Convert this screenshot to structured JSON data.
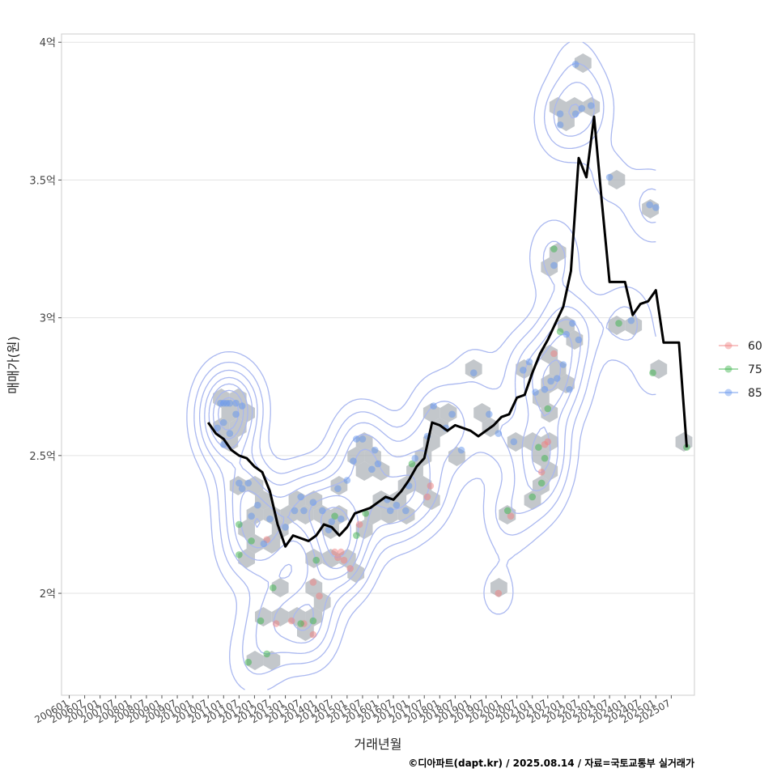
{
  "chart_data": {
    "type": "scatter",
    "xlabel": "거래년월",
    "ylabel": "매매가(원)",
    "caption": "©디아파트(dapt.kr) / 2025.08.14 / 자료=국토교통부 실거래가",
    "x_tick_labels": [
      "200601",
      "200607",
      "200701",
      "200707",
      "200801",
      "200807",
      "200901",
      "200907",
      "201001",
      "201007",
      "201101",
      "201107",
      "201201",
      "201207",
      "201301",
      "201307",
      "201401",
      "201407",
      "201501",
      "201507",
      "201601",
      "201607",
      "201701",
      "201707",
      "201801",
      "201807",
      "201901",
      "201907",
      "202001",
      "202007",
      "202101",
      "202107",
      "202201",
      "202207",
      "202301",
      "202307",
      "202401",
      "202407",
      "202501",
      "202507"
    ],
    "y_ticks": [
      {
        "value": 20000,
        "label": "2억"
      },
      {
        "value": 25000,
        "label": "2.5억"
      },
      {
        "value": 30000,
        "label": "3억"
      },
      {
        "value": 35000,
        "label": "3.5억"
      },
      {
        "value": 40000,
        "label": "4억"
      }
    ],
    "xlim": [
      2005.75,
      2026.25
    ],
    "ylim": [
      16300,
      40300
    ],
    "grid": true,
    "legend_position": "right",
    "series_colors": {
      "60": "#f08080",
      "75": "#3cb44b",
      "85": "#6495ed"
    },
    "trend_color": "#000000",
    "hex_color": "#a9afb5",
    "contour_color": "#aab8f0",
    "series": [
      {
        "name": "60",
        "points": [
          [
            2012.4,
            21950
          ],
          [
            2012.7,
            18900
          ],
          [
            2013.2,
            19000
          ],
          [
            2013.6,
            18900
          ],
          [
            2013.9,
            18500
          ],
          [
            2013.9,
            20400
          ],
          [
            2014.1,
            19900
          ],
          [
            2014.6,
            21500
          ],
          [
            2014.7,
            21300
          ],
          [
            2014.8,
            21500
          ],
          [
            2014.9,
            21200
          ],
          [
            2015.1,
            20900
          ],
          [
            2015.4,
            22500
          ],
          [
            2017.6,
            23500
          ],
          [
            2017.7,
            23900
          ],
          [
            2019.9,
            20000
          ],
          [
            2020.3,
            22800
          ],
          [
            2021.4,
            25400
          ],
          [
            2021.5,
            25500
          ],
          [
            2021.7,
            28700
          ],
          [
            2021.3,
            24400
          ]
        ]
      },
      {
        "name": "75",
        "points": [
          [
            2011.5,
            22500
          ],
          [
            2011.5,
            21400
          ],
          [
            2011.8,
            17500
          ],
          [
            2011.9,
            21900
          ],
          [
            2012.2,
            19000
          ],
          [
            2012.4,
            17800
          ],
          [
            2012.6,
            20200
          ],
          [
            2013.5,
            18900
          ],
          [
            2013.9,
            19000
          ],
          [
            2014.0,
            21200
          ],
          [
            2014.6,
            22800
          ],
          [
            2015.3,
            22100
          ],
          [
            2015.6,
            22900
          ],
          [
            2017.1,
            24700
          ],
          [
            2020.2,
            23000
          ],
          [
            2021.0,
            23500
          ],
          [
            2021.2,
            25300
          ],
          [
            2021.4,
            24900
          ],
          [
            2021.3,
            24000
          ],
          [
            2021.5,
            26700
          ],
          [
            2021.7,
            32500
          ],
          [
            2021.9,
            29500
          ],
          [
            2023.8,
            29800
          ],
          [
            2024.9,
            28000
          ],
          [
            2026.0,
            25300
          ]
        ]
      },
      {
        "name": "85",
        "points": [
          [
            2010.9,
            26900
          ],
          [
            2011.0,
            26900
          ],
          [
            2011.1,
            26900
          ],
          [
            2011.2,
            26900
          ],
          [
            2011.4,
            26900
          ],
          [
            2011.6,
            26800
          ],
          [
            2010.8,
            26000
          ],
          [
            2011.0,
            26200
          ],
          [
            2011.2,
            25800
          ],
          [
            2011.4,
            26500
          ],
          [
            2011.0,
            25400
          ],
          [
            2011.5,
            24000
          ],
          [
            2011.6,
            23800
          ],
          [
            2011.8,
            24000
          ],
          [
            2011.9,
            22800
          ],
          [
            2012.1,
            23200
          ],
          [
            2012.3,
            21800
          ],
          [
            2012.5,
            22700
          ],
          [
            2013.0,
            22400
          ],
          [
            2013.3,
            23000
          ],
          [
            2013.5,
            23500
          ],
          [
            2013.6,
            23000
          ],
          [
            2013.9,
            23300
          ],
          [
            2014.2,
            23000
          ],
          [
            2014.4,
            22300
          ],
          [
            2014.5,
            22600
          ],
          [
            2014.8,
            22700
          ],
          [
            2014.7,
            23800
          ],
          [
            2015.0,
            24100
          ],
          [
            2015.2,
            24800
          ],
          [
            2015.3,
            25600
          ],
          [
            2015.5,
            25600
          ],
          [
            2015.8,
            24500
          ],
          [
            2015.9,
            25200
          ],
          [
            2016.0,
            24700
          ],
          [
            2016.3,
            23400
          ],
          [
            2016.4,
            23000
          ],
          [
            2016.6,
            23200
          ],
          [
            2016.9,
            23000
          ],
          [
            2017.0,
            23900
          ],
          [
            2017.2,
            24900
          ],
          [
            2017.6,
            25700
          ],
          [
            2017.8,
            26800
          ],
          [
            2018.2,
            26000
          ],
          [
            2018.4,
            26500
          ],
          [
            2018.7,
            25200
          ],
          [
            2019.1,
            28000
          ],
          [
            2019.6,
            26500
          ],
          [
            2019.9,
            25800
          ],
          [
            2020.4,
            25500
          ],
          [
            2020.7,
            28100
          ],
          [
            2020.9,
            28400
          ],
          [
            2021.1,
            27300
          ],
          [
            2021.4,
            27400
          ],
          [
            2021.6,
            27700
          ],
          [
            2021.8,
            27800
          ],
          [
            2022.0,
            28300
          ],
          [
            2022.2,
            27400
          ],
          [
            2022.5,
            29200
          ],
          [
            2022.3,
            29800
          ],
          [
            2022.1,
            29400
          ],
          [
            2021.7,
            31900
          ],
          [
            2021.9,
            37400
          ],
          [
            2021.9,
            37000
          ],
          [
            2022.4,
            37400
          ],
          [
            2022.6,
            37600
          ],
          [
            2022.9,
            37700
          ],
          [
            2022.4,
            39200
          ],
          [
            2023.5,
            35100
          ],
          [
            2024.2,
            29900
          ],
          [
            2025.0,
            34000
          ],
          [
            2024.8,
            34100
          ]
        ]
      }
    ],
    "trend_line": [
      [
        2010.5,
        26200
      ],
      [
        2010.75,
        25800
      ],
      [
        2011.0,
        25600
      ],
      [
        2011.25,
        25200
      ],
      [
        2011.5,
        25000
      ],
      [
        2011.75,
        24900
      ],
      [
        2012.0,
        24600
      ],
      [
        2012.25,
        24400
      ],
      [
        2012.5,
        23700
      ],
      [
        2012.75,
        22500
      ],
      [
        2013.0,
        21700
      ],
      [
        2013.25,
        22100
      ],
      [
        2013.5,
        22000
      ],
      [
        2013.75,
        21900
      ],
      [
        2014.0,
        22100
      ],
      [
        2014.25,
        22500
      ],
      [
        2014.5,
        22400
      ],
      [
        2014.75,
        22100
      ],
      [
        2015.0,
        22400
      ],
      [
        2015.25,
        22900
      ],
      [
        2015.5,
        23000
      ],
      [
        2015.75,
        23100
      ],
      [
        2016.0,
        23300
      ],
      [
        2016.25,
        23500
      ],
      [
        2016.5,
        23400
      ],
      [
        2016.75,
        23700
      ],
      [
        2017.0,
        24100
      ],
      [
        2017.25,
        24600
      ],
      [
        2017.5,
        24900
      ],
      [
        2017.75,
        26200
      ],
      [
        2018.0,
        26100
      ],
      [
        2018.25,
        25900
      ],
      [
        2018.5,
        26100
      ],
      [
        2018.75,
        26000
      ],
      [
        2019.0,
        25900
      ],
      [
        2019.25,
        25700
      ],
      [
        2019.5,
        25900
      ],
      [
        2019.75,
        26100
      ],
      [
        2020.0,
        26400
      ],
      [
        2020.25,
        26500
      ],
      [
        2020.5,
        27100
      ],
      [
        2020.75,
        27200
      ],
      [
        2021.0,
        28000
      ],
      [
        2021.25,
        28700
      ],
      [
        2021.5,
        29200
      ],
      [
        2021.75,
        29800
      ],
      [
        2022.0,
        30400
      ],
      [
        2022.25,
        31700
      ],
      [
        2022.5,
        35800
      ],
      [
        2022.75,
        35100
      ],
      [
        2023.0,
        37300
      ],
      [
        2023.25,
        34200
      ],
      [
        2023.5,
        31300
      ],
      [
        2023.75,
        31300
      ],
      [
        2024.0,
        31300
      ],
      [
        2024.25,
        30100
      ],
      [
        2024.5,
        30500
      ],
      [
        2024.75,
        30600
      ],
      [
        2025.0,
        31000
      ],
      [
        2025.25,
        29100
      ],
      [
        2025.5,
        29100
      ],
      [
        2025.75,
        29100
      ],
      [
        2026.0,
        25300
      ]
    ]
  }
}
